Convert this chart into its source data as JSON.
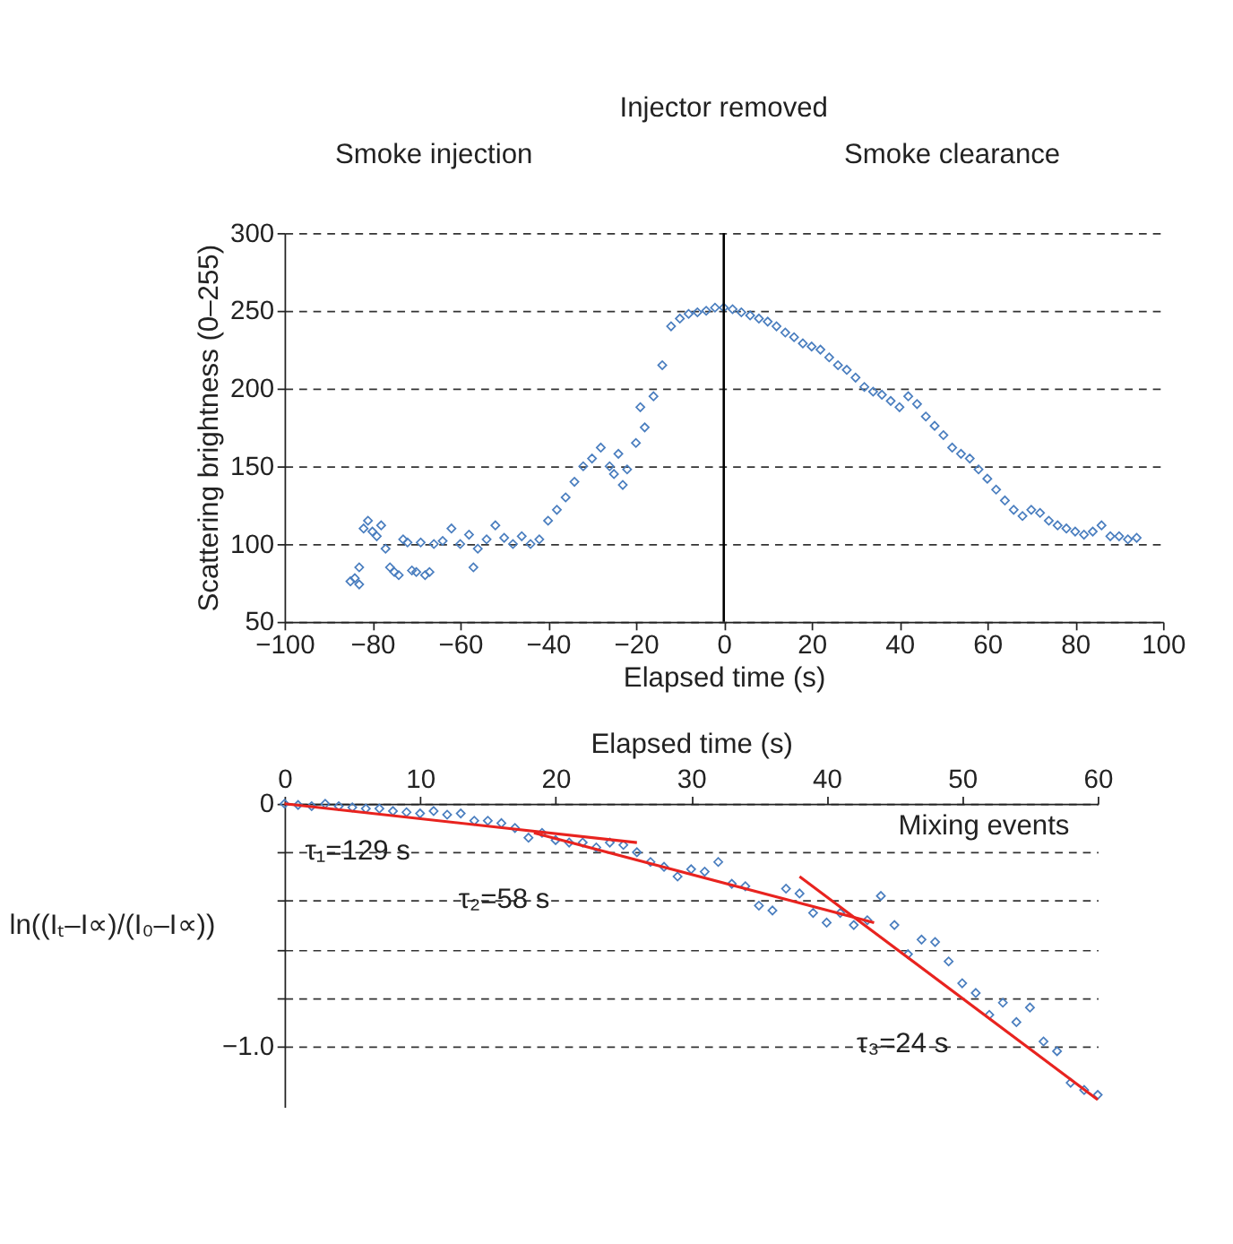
{
  "chart_data": [
    {
      "type": "scatter",
      "xlabel": "Elapsed time (s)",
      "ylabel": "Scattering brightness (0–255)",
      "xlim": [
        -100,
        100
      ],
      "xticks": [
        -100,
        -80,
        -60,
        -40,
        -20,
        0,
        20,
        40,
        60,
        80,
        100
      ],
      "ylim": [
        50,
        300
      ],
      "yticks": [
        50,
        100,
        150,
        200,
        250,
        300
      ],
      "grid": "y",
      "marker": "diamond",
      "annotations": [
        "Smoke injection",
        "Injector removed",
        "Smoke clearance"
      ],
      "ref_lines": [
        {
          "axis": "x",
          "value": 0,
          "color": "#000000"
        }
      ],
      "series": [
        {
          "color": "#4a7ebf",
          "x": [
            -85,
            -84,
            -83,
            -83,
            -82,
            -81,
            -80,
            -79,
            -78,
            -77,
            -76,
            -75,
            -74,
            -73,
            -72,
            -71,
            -70,
            -69,
            -68,
            -67,
            -66,
            -64,
            -62,
            -60,
            -58,
            -57,
            -56,
            -54,
            -52,
            -50,
            -48,
            -46,
            -44,
            -42,
            -40,
            -38,
            -36,
            -34,
            -32,
            -30,
            -28,
            -26,
            -25,
            -24,
            -23,
            -22,
            -20,
            -19,
            -18,
            -16,
            -14,
            -12,
            -10,
            -8,
            -6,
            -4,
            -2,
            0,
            2,
            4,
            6,
            8,
            10,
            12,
            14,
            16,
            18,
            20,
            22,
            24,
            26,
            28,
            30,
            32,
            34,
            36,
            38,
            40,
            42,
            44,
            46,
            48,
            50,
            52,
            54,
            56,
            58,
            60,
            62,
            64,
            66,
            68,
            70,
            72,
            74,
            76,
            78,
            80,
            82,
            84,
            86,
            88,
            90,
            92,
            94
          ],
          "values": [
            76,
            78,
            85,
            74,
            110,
            115,
            108,
            105,
            112,
            97,
            85,
            82,
            80,
            103,
            101,
            83,
            82,
            101,
            80,
            82,
            100,
            102,
            110,
            100,
            106,
            85,
            97,
            103,
            112,
            104,
            100,
            105,
            100,
            103,
            115,
            122,
            130,
            140,
            150,
            155,
            162,
            150,
            145,
            158,
            138,
            148,
            165,
            188,
            175,
            195,
            215,
            240,
            245,
            248,
            249,
            250,
            252,
            252,
            251,
            249,
            247,
            245,
            243,
            240,
            236,
            233,
            229,
            227,
            225,
            220,
            215,
            212,
            207,
            201,
            198,
            196,
            192,
            188,
            195,
            190,
            182,
            176,
            170,
            162,
            158,
            155,
            148,
            142,
            135,
            128,
            122,
            118,
            122,
            120,
            115,
            112,
            110,
            108,
            106,
            108,
            112,
            105,
            105,
            103,
            104
          ]
        }
      ]
    },
    {
      "type": "scatter",
      "xlabel": "Elapsed time (s)",
      "ylabel": "ln((Iₜ–I∝)/(I₀–I∝))",
      "xlim": [
        0,
        60
      ],
      "xticks": [
        0,
        10,
        20,
        30,
        40,
        50,
        60
      ],
      "ylim": [
        -1.25,
        0
      ],
      "yticks": [
        0,
        {
          "value": -0.2,
          "label": null
        },
        {
          "value": -0.4,
          "label": null
        },
        {
          "value": -0.6,
          "label": null
        },
        {
          "value": -0.8,
          "label": null
        },
        {
          "value": -1.0,
          "label": "−1.0"
        }
      ],
      "grid": "y",
      "marker": "diamond",
      "annotations": [
        "τ₁=129 s",
        "τ₂=58 s",
        "τ₃=24 s",
        "Mixing events"
      ],
      "series": [
        {
          "color": "#4a7ebf",
          "x": [
            0,
            1,
            2,
            3,
            4,
            5,
            6,
            7,
            8,
            9,
            10,
            11,
            12,
            13,
            14,
            15,
            16,
            17,
            18,
            19,
            20,
            21,
            22,
            23,
            24,
            25,
            26,
            27,
            28,
            29,
            30,
            31,
            32,
            33,
            34,
            35,
            36,
            37,
            38,
            39,
            40,
            41,
            42,
            43,
            44,
            45,
            46,
            47,
            48,
            49,
            50,
            51,
            52,
            53,
            54,
            55,
            56,
            57,
            58,
            59,
            60
          ],
          "values": [
            0,
            -0.005,
            -0.01,
            0,
            -0.01,
            -0.015,
            -0.02,
            -0.02,
            -0.03,
            -0.035,
            -0.04,
            -0.03,
            -0.045,
            -0.04,
            -0.07,
            -0.07,
            -0.08,
            -0.1,
            -0.14,
            -0.12,
            -0.15,
            -0.16,
            -0.16,
            -0.18,
            -0.16,
            -0.17,
            -0.2,
            -0.24,
            -0.26,
            -0.3,
            -0.27,
            -0.28,
            -0.24,
            -0.33,
            -0.34,
            -0.42,
            -0.44,
            -0.35,
            -0.37,
            -0.45,
            -0.49,
            -0.45,
            -0.5,
            -0.48,
            -0.38,
            -0.5,
            -0.62,
            -0.56,
            -0.57,
            -0.65,
            -0.74,
            -0.78,
            -0.87,
            -0.82,
            -0.9,
            -0.84,
            -0.98,
            -1.02,
            -1.15,
            -1.18,
            -1.2
          ]
        },
        {
          "type": "line",
          "marker": "none",
          "line_style": "solid",
          "color": "#e8231f",
          "x": [
            0,
            26
          ],
          "values": [
            0,
            -0.16
          ]
        },
        {
          "type": "line",
          "marker": "none",
          "line_style": "solid",
          "color": "#e8231f",
          "x": [
            18.4,
            43.5
          ],
          "values": [
            -0.12,
            -0.49
          ]
        },
        {
          "type": "line",
          "marker": "none",
          "line_style": "solid",
          "color": "#e8231f",
          "x": [
            38,
            60
          ],
          "values": [
            -0.3,
            -1.22
          ]
        }
      ]
    }
  ]
}
